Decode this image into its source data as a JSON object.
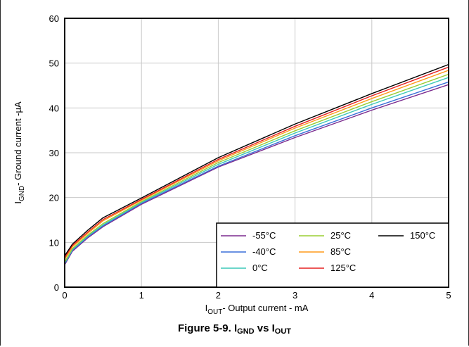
{
  "chart_data": {
    "type": "line",
    "title": "",
    "xlabel": {
      "main": "I",
      "sub": "OUT",
      "rest": "- Output current - mA"
    },
    "ylabel": {
      "main": "I",
      "sub": "GND",
      "rest": "- Ground current -μA"
    },
    "xlim": [
      0,
      5
    ],
    "ylim": [
      0,
      60
    ],
    "xticks": [
      0,
      1,
      2,
      3,
      4,
      5
    ],
    "yticks": [
      0,
      10,
      20,
      30,
      40,
      50,
      60
    ],
    "grid": true,
    "legend_position": "bottom-right",
    "x": [
      0,
      0.1,
      0.3,
      0.5,
      1,
      2,
      3,
      4,
      5
    ],
    "series": [
      {
        "name": "-55°C",
        "color": "#7b2a8e",
        "values": [
          5.0,
          8.0,
          11.0,
          13.5,
          18.5,
          26.8,
          33.4,
          39.5,
          45.2
        ]
      },
      {
        "name": "-40°C",
        "color": "#3a6fd8",
        "values": [
          5.2,
          8.2,
          11.2,
          13.7,
          18.7,
          27.0,
          33.8,
          40.0,
          45.8
        ]
      },
      {
        "name": "0°C",
        "color": "#3cc9b8",
        "values": [
          5.4,
          8.4,
          11.4,
          13.9,
          18.9,
          27.4,
          34.4,
          40.8,
          46.8
        ]
      },
      {
        "name": "25°C",
        "color": "#9acd32",
        "values": [
          5.6,
          8.6,
          11.6,
          14.2,
          19.1,
          27.8,
          34.9,
          41.4,
          47.5
        ]
      },
      {
        "name": "85°C",
        "color": "#ff9a1a",
        "values": [
          6.2,
          9.0,
          12.0,
          14.8,
          19.4,
          28.2,
          35.5,
          42.1,
          48.4
        ]
      },
      {
        "name": "125°C",
        "color": "#e62020",
        "values": [
          6.6,
          9.3,
          12.3,
          15.1,
          19.6,
          28.5,
          35.9,
          42.7,
          49.1
        ]
      },
      {
        "name": "150°C",
        "color": "#000000",
        "values": [
          7.0,
          9.6,
          12.7,
          15.5,
          19.9,
          28.9,
          36.4,
          43.2,
          49.7
        ]
      }
    ]
  },
  "caption": {
    "prefix": "Figure 5-9. I",
    "sub1": "GND",
    "mid": " vs I",
    "sub2": "OUT"
  }
}
